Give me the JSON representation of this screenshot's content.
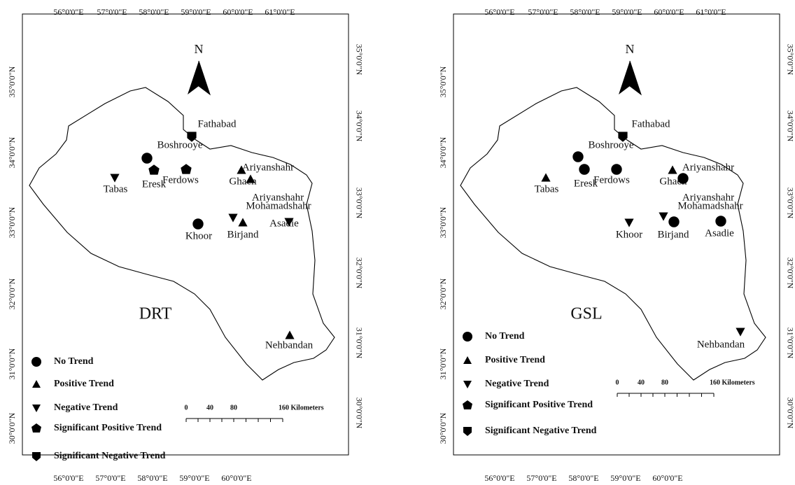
{
  "maps": [
    {
      "title": "DRT",
      "north": "N",
      "lon_top": [
        "56°0'0\"E",
        "57°0'0\"E",
        "58°0'0\"E",
        "59°0'0\"E",
        "60°0'0\"E",
        "61°0'0\"E"
      ],
      "lon_bottom": [
        "56°0'0\"E",
        "57°0'0\"E",
        "58°0'0\"E",
        "59°0'0\"E",
        "60°0'0\"E"
      ],
      "lat_left": [
        "35°0'0\"N",
        "34°0'0\"N",
        "33°0'0\"N",
        "32°0'0\"N",
        "31°0'0\"N",
        "30°0'0\"N"
      ],
      "lat_right": [
        "35°0'0\"N",
        "34°0'0\"N",
        "33°0'0\"N",
        "32°0'0\"N",
        "31°0'0\"N",
        "30°0'0\"N"
      ],
      "stations": [
        {
          "label": "Fathabad",
          "symbol": "significant-negative"
        },
        {
          "label": "Boshrooye",
          "symbol": "no-trend"
        },
        {
          "label": "Ferdows",
          "symbol": "significant-positive"
        },
        {
          "label": "Eresk",
          "symbol": "significant-positive"
        },
        {
          "label": "Tabas",
          "symbol": "negative"
        },
        {
          "label": "Ghaen",
          "symbol": "positive"
        },
        {
          "label": "Ariyanshahr",
          "symbol": "positive"
        },
        {
          "label": "Ariyanshahr",
          "symbol": null
        },
        {
          "label": "Mohamadshahr",
          "symbol": "negative"
        },
        {
          "label": "Birjand",
          "symbol": "positive"
        },
        {
          "label": "Khoor",
          "symbol": "no-trend"
        },
        {
          "label": "Asadie",
          "symbol": "negative"
        },
        {
          "label": "Nehbandan",
          "symbol": "positive"
        }
      ]
    },
    {
      "title": "GSL",
      "north": "N",
      "lon_top": [
        "56°0'0\"E",
        "57°0'0\"E",
        "58°0'0\"E",
        "59°0'0\"E",
        "60°0'0\"E",
        "61°0'0\"E"
      ],
      "lon_bottom": [
        "56°0'0\"E",
        "57°0'0\"E",
        "58°0'0\"E",
        "59°0'0\"E",
        "60°0'0\"E"
      ],
      "lat_left": [
        "35°0'0\"N",
        "34°0'0\"N",
        "33°0'0\"N",
        "32°0'0\"N",
        "31°0'0\"N",
        "30°0'0\"N"
      ],
      "lat_right": [
        "35°0'0\"N",
        "34°0'0\"N",
        "33°0'0\"N",
        "32°0'0\"N",
        "31°0'0\"N",
        "30°0'0\"N"
      ],
      "stations": [
        {
          "label": "Fathabad",
          "symbol": "significant-negative"
        },
        {
          "label": "Boshrooye",
          "symbol": "no-trend"
        },
        {
          "label": "Ferdows",
          "symbol": "no-trend"
        },
        {
          "label": "Eresk",
          "symbol": "no-trend"
        },
        {
          "label": "Tabas",
          "symbol": "positive"
        },
        {
          "label": "Ghaen",
          "symbol": "positive"
        },
        {
          "label": "Ariyanshahr",
          "symbol": "no-trend"
        },
        {
          "label": "Ariyanshahr",
          "symbol": null
        },
        {
          "label": "Mohamadshahr",
          "symbol": "negative"
        },
        {
          "label": "Birjand",
          "symbol": "no-trend"
        },
        {
          "label": "Khoor",
          "symbol": "negative"
        },
        {
          "label": "Asadie",
          "symbol": "no-trend"
        },
        {
          "label": "Nehbandan",
          "symbol": "negative"
        }
      ]
    }
  ],
  "legend": [
    {
      "label": "No Trend",
      "symbol": "no-trend"
    },
    {
      "label": "Positive Trend",
      "symbol": "positive"
    },
    {
      "label": "Negative Trend",
      "symbol": "negative"
    },
    {
      "label": "Significant Positive Trend",
      "symbol": "significant-positive"
    },
    {
      "label": "Significant  Negative Trend",
      "symbol": "significant-negative"
    }
  ],
  "scale": {
    "ticks": [
      "0",
      "40",
      "80"
    ],
    "end": "160 Kilometers"
  }
}
